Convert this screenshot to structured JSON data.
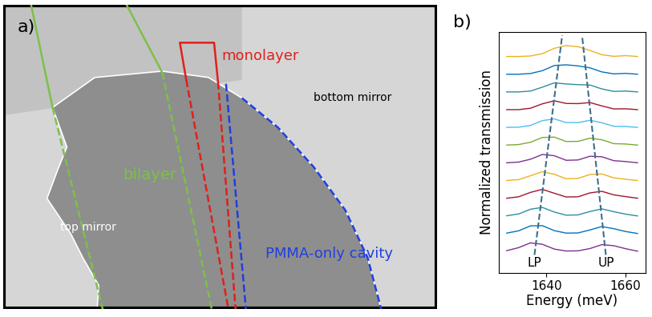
{
  "panel_a": {
    "label": "a)",
    "annotations": [
      {
        "text": "bilayer",
        "color": "#7cc04a"
      },
      {
        "text": "monolayer",
        "color": "#e0201c"
      },
      {
        "text": "PMMA-only cavity",
        "color": "#1f3fe0"
      },
      {
        "text": "top mirror",
        "color": "#ffffff"
      },
      {
        "text": "bottom mirror",
        "color": "#000000"
      }
    ]
  },
  "chart_data": {
    "type": "line",
    "title": "b)",
    "x_label": "Energy (meV)",
    "y_label": "Normalized transmission",
    "x": [
      1630,
      1633,
      1636,
      1639,
      1642,
      1645,
      1648,
      1651,
      1654,
      1657,
      1660,
      1663
    ],
    "series": [
      {
        "color": "#7e2f8e",
        "values": [
          0.24,
          0.41,
          0.68,
          0.6,
          0.33,
          0.22,
          0.23,
          0.36,
          0.58,
          0.52,
          0.35,
          0.21
        ]
      },
      {
        "color": "#0072bd",
        "values": [
          1.23,
          1.36,
          1.64,
          1.65,
          1.37,
          1.23,
          1.24,
          1.41,
          1.6,
          1.48,
          1.32,
          1.21
        ]
      },
      {
        "color": "#2a8f9f",
        "values": [
          2.21,
          2.31,
          2.58,
          2.68,
          2.42,
          2.24,
          2.26,
          2.45,
          2.6,
          2.44,
          2.3,
          2.2
        ]
      },
      {
        "color": "#a2142f",
        "values": [
          3.2,
          3.28,
          3.53,
          3.7,
          3.48,
          3.27,
          3.28,
          3.5,
          3.59,
          3.39,
          3.29,
          3.2
        ]
      },
      {
        "color": "#edb120",
        "values": [
          4.2,
          4.25,
          4.47,
          4.7,
          4.55,
          4.3,
          4.32,
          4.54,
          4.57,
          4.35,
          4.27,
          4.2
        ]
      },
      {
        "color": "#7e2f8e",
        "values": [
          5.2,
          5.24,
          5.4,
          5.67,
          5.6,
          5.34,
          5.36,
          5.57,
          5.54,
          5.32,
          5.27,
          5.2
        ]
      },
      {
        "color": "#77ac30",
        "values": [
          6.2,
          6.23,
          6.36,
          6.63,
          6.65,
          6.4,
          6.41,
          6.59,
          6.5,
          6.28,
          6.26,
          6.2
        ]
      },
      {
        "color": "#4dbeee",
        "values": [
          7.2,
          7.21,
          7.31,
          7.58,
          7.68,
          7.47,
          7.47,
          7.6,
          7.46,
          7.26,
          7.25,
          7.2
        ]
      },
      {
        "color": "#a2142f",
        "values": [
          8.2,
          8.2,
          8.28,
          8.53,
          8.7,
          8.55,
          8.54,
          8.6,
          8.41,
          8.24,
          8.25,
          8.2
        ]
      },
      {
        "color": "#2a8f9f",
        "values": [
          9.2,
          9.2,
          9.25,
          9.47,
          9.71,
          9.65,
          9.61,
          9.59,
          9.37,
          9.23,
          9.25,
          9.2
        ]
      },
      {
        "color": "#0072bd",
        "values": [
          10.2,
          10.2,
          10.24,
          10.4,
          10.69,
          10.73,
          10.67,
          10.56,
          10.33,
          10.22,
          10.25,
          10.2
        ]
      },
      {
        "color": "#edb120",
        "values": [
          11.2,
          11.2,
          11.23,
          11.36,
          11.66,
          11.82,
          11.75,
          11.54,
          11.3,
          11.21,
          11.25,
          11.2
        ]
      }
    ],
    "guides": [
      {
        "x": [
          1637,
          1644
        ],
        "y": [
          0.0,
          12.4
        ],
        "color": "#3f6e8c",
        "line_style": "dashed"
      },
      {
        "x": [
          1655,
          1649
        ],
        "y": [
          0.0,
          12.4
        ],
        "color": "#3f6e8c",
        "line_style": "dashed"
      }
    ],
    "annotations": [
      {
        "text": "LP",
        "x": 1637,
        "y": -0.45
      },
      {
        "text": "UP",
        "x": 1655,
        "y": -0.45
      }
    ],
    "xlim": [
      1628,
      1665
    ],
    "xticks": [
      1640,
      1660
    ],
    "ylim": [
      -1.0,
      12.6
    ],
    "yticks": [],
    "tick_labels": "x",
    "grid": false
  }
}
